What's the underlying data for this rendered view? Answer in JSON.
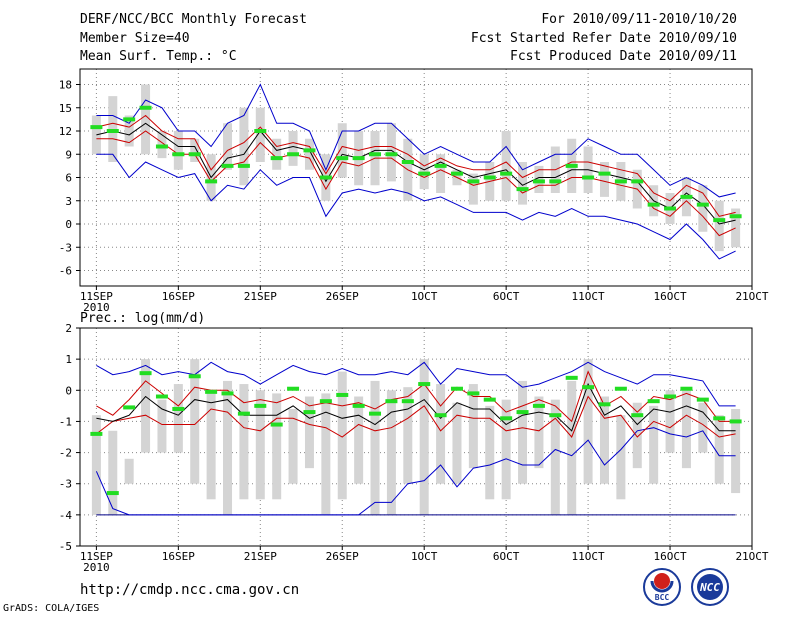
{
  "header": {
    "title": "DERF/NCC/BCC Monthly Forecast",
    "member_size": "Member Size=40",
    "variable": "Mean Surf. Temp.: °C",
    "period": "For 2010/09/11-2010/10/20",
    "start_date": "Fcst Started Refer Date 2010/09/10",
    "produced_date": "Fcst Produced Date 2010/09/11"
  },
  "footer": {
    "url": "http://cmdp.ncc.cma.gov.cn",
    "credit": "GrADS: COLA/IGES",
    "logo_bcc": "BCC",
    "logo_ncc": "NCC"
  },
  "colors": {
    "envelope": "#0000cc",
    "quartile": "#cc0000",
    "mean": "#000000",
    "box": "#d4d4d4",
    "observed": "#22dd22",
    "frame": "#000000",
    "grid": "#888888",
    "floor": "#000088"
  },
  "chart_data": [
    {
      "type": "box-line",
      "title": "Mean Surf. Temp.: °C",
      "ylabel": "°C",
      "xlabel": "",
      "ylim": [
        -8,
        20
      ],
      "yticks": [
        -6,
        -3,
        0,
        3,
        6,
        9,
        12,
        15,
        18
      ],
      "x_range": [
        -1,
        40
      ],
      "grid": true,
      "xticks": [
        {
          "day": 0,
          "label": "11SEP",
          "sublabel": "2010"
        },
        {
          "day": 5,
          "label": "16SEP"
        },
        {
          "day": 10,
          "label": "21SEP"
        },
        {
          "day": 15,
          "label": "26SEP"
        },
        {
          "day": 20,
          "label": "1OCT"
        },
        {
          "day": 25,
          "label": "6OCT"
        },
        {
          "day": 30,
          "label": "11OCT"
        },
        {
          "day": 35,
          "label": "16OCT"
        },
        {
          "day": 40,
          "label": "21OCT"
        }
      ],
      "days": [
        0,
        1,
        2,
        3,
        4,
        5,
        6,
        7,
        8,
        9,
        10,
        11,
        12,
        13,
        14,
        15,
        16,
        17,
        18,
        19,
        20,
        21,
        22,
        23,
        24,
        25,
        26,
        27,
        28,
        29,
        30,
        31,
        32,
        33,
        34,
        35,
        36,
        37,
        38,
        39
      ],
      "series": [
        {
          "name": "max",
          "values": [
            14,
            14,
            13,
            16,
            15,
            12,
            12,
            10,
            13,
            14,
            18,
            13,
            13,
            12,
            7,
            12,
            12,
            13,
            13,
            11,
            9,
            10,
            9,
            8,
            8,
            10,
            7,
            8,
            9,
            9,
            11,
            10,
            9,
            9,
            7,
            5,
            6,
            5,
            3.5,
            4
          ]
        },
        {
          "name": "upper",
          "values": [
            12.5,
            13,
            12.5,
            14,
            12,
            11,
            11,
            7,
            9.5,
            10.5,
            12.5,
            10,
            10.5,
            10,
            6.5,
            10,
            9.5,
            10,
            10,
            9,
            7.5,
            8.5,
            7.5,
            7,
            7,
            8,
            6,
            7,
            7,
            8,
            8,
            7.5,
            7,
            6.5,
            4,
            3,
            5,
            4,
            1,
            1.5
          ]
        },
        {
          "name": "mean",
          "values": [
            11.5,
            12,
            11.5,
            13,
            11.5,
            10,
            10,
            6,
            8.5,
            9,
            12,
            9.5,
            10,
            9.5,
            5.5,
            9,
            8.5,
            9.5,
            9.5,
            8,
            7,
            8,
            7,
            6,
            6.5,
            7,
            5,
            6,
            6,
            7,
            7,
            6.5,
            6,
            5.5,
            3,
            2,
            4,
            2.5,
            0,
            0.5
          ]
        },
        {
          "name": "lower",
          "values": [
            11,
            11,
            10.5,
            12,
            10.5,
            9,
            9,
            5.5,
            7.5,
            8,
            10.5,
            8.5,
            9,
            8.5,
            4.5,
            8,
            7.5,
            8.5,
            8.5,
            7,
            6,
            7,
            6,
            5,
            5.5,
            6,
            4,
            5,
            5,
            6,
            6,
            5.5,
            5,
            4.5,
            2,
            1,
            3,
            1,
            -1.5,
            -0.5
          ]
        },
        {
          "name": "min",
          "values": [
            9,
            9,
            6,
            8,
            7,
            6,
            6.5,
            3,
            5,
            4.5,
            7,
            5,
            6,
            6,
            1,
            4,
            4.5,
            4,
            4.5,
            4,
            3,
            3.5,
            2.5,
            1.5,
            1.5,
            1.5,
            0.5,
            1.5,
            1,
            2,
            1,
            1,
            0.5,
            0,
            -1,
            -2,
            0,
            -2,
            -4.5,
            -3.5
          ]
        },
        {
          "name": "box_top",
          "values": [
            14,
            16.5,
            14,
            18,
            12,
            12,
            11,
            9,
            13,
            15,
            15,
            11,
            12,
            11,
            9,
            13,
            12,
            12,
            13,
            11,
            9,
            9,
            7,
            6.5,
            8,
            12,
            8,
            7.5,
            10,
            11,
            10,
            8,
            8,
            7,
            5,
            4,
            6,
            5,
            3,
            2
          ]
        },
        {
          "name": "box_bottom",
          "values": [
            9,
            8,
            10,
            9,
            8.5,
            7,
            8,
            3,
            7,
            5,
            8,
            7,
            7.5,
            7,
            3,
            6,
            5,
            5,
            5.5,
            3,
            4.5,
            4,
            5,
            2.5,
            3,
            3,
            2.5,
            4,
            4,
            4,
            4,
            3.5,
            3,
            2,
            1,
            0,
            1,
            -1,
            -3.5,
            -3
          ]
        },
        {
          "name": "observed",
          "values": [
            12.5,
            12,
            13.5,
            15,
            10,
            9,
            9,
            5.5,
            7.5,
            7.5,
            12,
            8.5,
            9,
            9.5,
            6,
            8.5,
            8.5,
            9,
            9,
            8,
            6.5,
            7.5,
            6.5,
            5.5,
            6,
            6.5,
            4.5,
            5.5,
            5.5,
            7.5,
            6,
            6.5,
            5.5,
            5.5,
            2.5,
            2,
            3.5,
            2.5,
            0.5,
            1
          ]
        }
      ]
    },
    {
      "type": "box-line",
      "title": "Prec.: log(mm/d)",
      "ylabel": "log(mm/d)",
      "xlabel": "",
      "ylim": [
        -5,
        2
      ],
      "yticks": [
        -5,
        -4,
        -3,
        -2,
        -1,
        0,
        1,
        2
      ],
      "x_range": [
        -1,
        40
      ],
      "grid": true,
      "floor_level": -4,
      "xticks": [
        {
          "day": 0,
          "label": "11SEP",
          "sublabel": "2010"
        },
        {
          "day": 5,
          "label": "16SEP"
        },
        {
          "day": 10,
          "label": "21SEP"
        },
        {
          "day": 15,
          "label": "26SEP"
        },
        {
          "day": 20,
          "label": "1OCT"
        },
        {
          "day": 25,
          "label": "6OCT"
        },
        {
          "day": 30,
          "label": "11OCT"
        },
        {
          "day": 35,
          "label": "16OCT"
        },
        {
          "day": 40,
          "label": "21OCT"
        }
      ],
      "days": [
        0,
        1,
        2,
        3,
        4,
        5,
        6,
        7,
        8,
        9,
        10,
        11,
        12,
        13,
        14,
        15,
        16,
        17,
        18,
        19,
        20,
        21,
        22,
        23,
        24,
        25,
        26,
        27,
        28,
        29,
        30,
        31,
        32,
        33,
        34,
        35,
        36,
        37,
        38,
        39
      ],
      "series": [
        {
          "name": "max",
          "values": [
            0.8,
            0.5,
            0.6,
            0.8,
            0.5,
            0.6,
            0.5,
            0.9,
            0.6,
            0.5,
            0.2,
            0.5,
            0.8,
            0.6,
            0.5,
            0.7,
            0.5,
            0.5,
            0.6,
            0.5,
            0.9,
            0.2,
            0.7,
            0.6,
            0.5,
            0.5,
            0.1,
            0.2,
            0.4,
            0.6,
            0.9,
            0.6,
            0.4,
            0.2,
            0.5,
            0.5,
            0.4,
            0.3,
            -0.5,
            -0.5
          ]
        },
        {
          "name": "upper",
          "values": [
            -0.5,
            -0.8,
            -0.3,
            0.3,
            -0.1,
            -0.5,
            0.1,
            0,
            0,
            -0.4,
            -0.3,
            -0.4,
            -0.2,
            -0.5,
            -0.4,
            -0.5,
            -0.4,
            -0.6,
            -0.3,
            -0.2,
            0.2,
            -0.5,
            0.1,
            -0.2,
            -0.2,
            -0.7,
            -0.5,
            -0.3,
            -0.5,
            -1,
            0.6,
            -0.5,
            -0.2,
            -0.7,
            -0.2,
            -0.3,
            -0.1,
            -0.3,
            -1,
            -1
          ]
        },
        {
          "name": "mean",
          "values": [
            -0.9,
            -1,
            -0.8,
            -0.2,
            -0.6,
            -0.8,
            -0.3,
            -0.4,
            -0.3,
            -0.8,
            -0.8,
            -0.8,
            -0.5,
            -0.9,
            -0.7,
            -0.9,
            -0.8,
            -1.1,
            -0.7,
            -0.6,
            -0.3,
            -0.9,
            -0.4,
            -0.6,
            -0.6,
            -1.1,
            -0.8,
            -0.7,
            -0.8,
            -1.3,
            0.2,
            -0.8,
            -0.5,
            -1.1,
            -0.6,
            -0.7,
            -0.5,
            -0.7,
            -1.3,
            -1.3
          ]
        },
        {
          "name": "lower",
          "values": [
            -1.4,
            -1,
            -0.9,
            -0.8,
            -1.1,
            -1.1,
            -1.1,
            -0.6,
            -0.7,
            -1.2,
            -1.3,
            -0.9,
            -0.9,
            -1.1,
            -1.2,
            -1.5,
            -1.1,
            -1.3,
            -1.2,
            -0.9,
            -0.5,
            -1.3,
            -0.8,
            -0.9,
            -0.9,
            -1.3,
            -1.2,
            -1.3,
            -0.9,
            -1.5,
            -0.2,
            -0.9,
            -0.8,
            -1.5,
            -1,
            -1.2,
            -0.8,
            -1.1,
            -1.5,
            -1.4
          ]
        },
        {
          "name": "min",
          "values": [
            -2.6,
            -3.8,
            -4,
            -4,
            -4,
            -4,
            -4,
            -4,
            -4,
            -4,
            -4,
            -4,
            -4,
            -4,
            -4,
            -4,
            -4,
            -3.6,
            -3.6,
            -3,
            -2.9,
            -2.4,
            -3.1,
            -2.5,
            -2.4,
            -2.2,
            -2.4,
            -2.4,
            -1.9,
            -2.1,
            -1.6,
            -2.4,
            -1.9,
            -1.3,
            -1.2,
            -1.4,
            -1.5,
            -1.3,
            -2.1,
            -2.1
          ]
        },
        {
          "name": "box_top",
          "values": [
            -0.8,
            -1.3,
            -2.2,
            1,
            -0.3,
            0.2,
            1,
            0,
            0.3,
            0.2,
            0,
            -0.1,
            -0.6,
            -0.2,
            -0.1,
            0.6,
            -0.2,
            0.3,
            0,
            0.1,
            1,
            0.2,
            -0.4,
            0.2,
            -0.5,
            -0.3,
            0.3,
            -0.2,
            -0.3,
            0.3,
            1,
            -0.2,
            -0.8,
            -0.4,
            -0.5,
            0,
            0.1,
            -0.4,
            -0.8,
            -0.6
          ]
        },
        {
          "name": "box_bottom",
          "values": [
            -4,
            -4,
            -3,
            -2,
            -2,
            -2,
            -3,
            -3.5,
            -4,
            -3.5,
            -3.5,
            -3.5,
            -3,
            -2.5,
            -4,
            -3.5,
            -3,
            -4,
            -4,
            -3,
            -4,
            -3,
            -3,
            -2.5,
            -3.5,
            -3.5,
            -3,
            -2.5,
            -4,
            -4,
            -3,
            -3,
            -3.5,
            -2.5,
            -3,
            -2,
            -2.5,
            -2,
            -3,
            -3.3
          ]
        },
        {
          "name": "observed",
          "values": [
            -1.4,
            -3.3,
            -0.55,
            0.55,
            -0.2,
            -0.6,
            0.45,
            -0.05,
            -0.1,
            -0.75,
            -0.5,
            -1.1,
            0.05,
            -0.7,
            -0.35,
            -0.15,
            -0.5,
            -0.75,
            -0.35,
            -0.35,
            0.2,
            -0.8,
            0.05,
            -0.1,
            -0.3,
            -0.9,
            -0.7,
            -0.5,
            -0.8,
            0.4,
            0.1,
            -0.45,
            0.05,
            -0.8,
            -0.35,
            -0.2,
            0.05,
            -0.3,
            -0.9,
            -1
          ]
        }
      ]
    }
  ]
}
